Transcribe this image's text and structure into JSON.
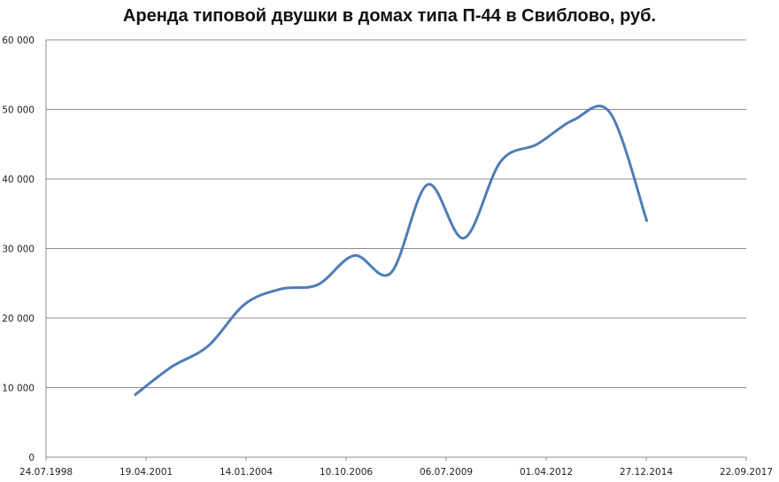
{
  "chart_data": {
    "type": "line",
    "title": "Аренда типовой двушки в домах типа П-44 в Свиблово, руб.",
    "xlabel": "",
    "ylabel": "",
    "x_ticks": [
      "24.07.1998",
      "19.04.2001",
      "14.01.2004",
      "10.10.2006",
      "06.07.2009",
      "01.04.2012",
      "27.12.2014",
      "22.09.2017"
    ],
    "y_ticks": [
      "0",
      "10 000",
      "20 000",
      "30 000",
      "40 000",
      "50 000",
      "60 000"
    ],
    "ylim": [
      0,
      60000
    ],
    "xlim": [
      "24.07.1998",
      "22.09.2017"
    ],
    "grid": true,
    "legend": "none",
    "color": "#4f7db5",
    "series": [
      {
        "x": [
          "01.01.2001",
          "01.01.2002",
          "01.01.2003",
          "01.01.2004",
          "01.01.2005",
          "01.01.2006",
          "01.01.2007",
          "01.01.2008",
          "01.01.2009",
          "01.01.2010",
          "01.01.2011",
          "01.01.2012",
          "01.01.2013",
          "01.01.2014",
          "01.01.2015"
        ],
        "values": [
          9000,
          13000,
          16000,
          22000,
          24200,
          24800,
          29000,
          26500,
          39200,
          31500,
          42500,
          45000,
          48500,
          49500,
          34000
        ]
      }
    ]
  }
}
